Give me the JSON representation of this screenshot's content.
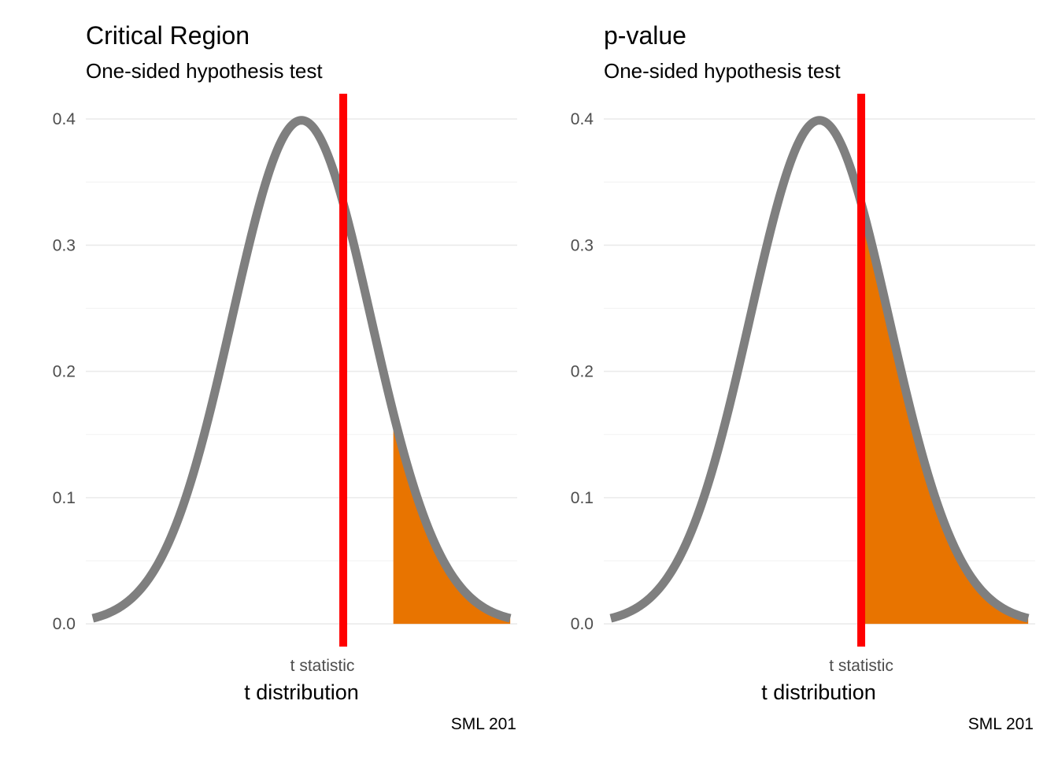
{
  "chart_data": [
    {
      "type": "area",
      "title": "Critical Region",
      "subtitle": "One-sided hypothesis test",
      "xlabel": "t distribution",
      "ylabel": "",
      "caption": "SML 201",
      "x_tick_labels": [
        {
          "x": 0.3,
          "label": "t statistic"
        }
      ],
      "y_ticks": [
        0.0,
        0.1,
        0.2,
        0.3,
        0.4
      ],
      "xlim": [
        -3.1,
        3.1
      ],
      "ylim": [
        -0.018,
        0.42
      ],
      "curve": {
        "distribution": "normal density",
        "x_range": [
          -3.0,
          3.0
        ],
        "color": "#7f7f7f"
      },
      "vline": {
        "x": 0.6,
        "color": "#ff0000"
      },
      "shaded_region": {
        "x_from": 1.32,
        "x_to": 3.0,
        "color": "#e87400"
      },
      "grid": true,
      "legend": "none"
    },
    {
      "type": "area",
      "title": "p-value",
      "subtitle": "One-sided hypothesis test",
      "xlabel": "t distribution",
      "ylabel": "",
      "caption": "SML 201",
      "x_tick_labels": [
        {
          "x": 0.6,
          "label": "t statistic"
        }
      ],
      "y_ticks": [
        0.0,
        0.1,
        0.2,
        0.3,
        0.4
      ],
      "xlim": [
        -3.1,
        3.1
      ],
      "ylim": [
        -0.018,
        0.42
      ],
      "curve": {
        "distribution": "normal density",
        "x_range": [
          -3.0,
          3.0
        ],
        "color": "#7f7f7f"
      },
      "vline": {
        "x": 0.6,
        "color": "#ff0000"
      },
      "shaded_region": {
        "x_from": 0.6,
        "x_to": 3.0,
        "color": "#e87400"
      },
      "grid": true,
      "legend": "none"
    }
  ]
}
